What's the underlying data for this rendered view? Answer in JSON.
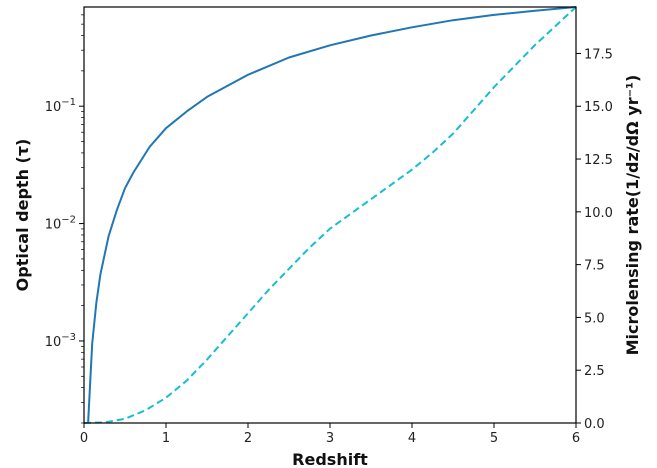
{
  "chart_data": {
    "type": "line",
    "xlabel": "Redshift",
    "ylabel_left": "Optical depth (τ)",
    "ylabel_right": "Microlensing rate(1/dz/dΩ yr⁻¹)",
    "x_ticks": [
      "0",
      "1",
      "2",
      "3",
      "4",
      "5",
      "6"
    ],
    "xlim": [
      0,
      6
    ],
    "left_axis": {
      "scale": "log",
      "ylim": [
        0.0002,
        0.7
      ],
      "ticks": [
        {
          "value": 0.001,
          "base": "10",
          "exp": "−3"
        },
        {
          "value": 0.01,
          "base": "10",
          "exp": "−2"
        },
        {
          "value": 0.1,
          "base": "10",
          "exp": "−1"
        }
      ]
    },
    "right_axis": {
      "scale": "linear",
      "ylim": [
        0,
        19.7
      ],
      "ticks": [
        "0.0",
        "2.5",
        "5.0",
        "7.5",
        "10.0",
        "12.5",
        "15.0",
        "17.5"
      ]
    },
    "series": [
      {
        "axis": "left",
        "style": "solid",
        "color": "#1f77b4",
        "x": [
          0.05,
          0.1,
          0.15,
          0.2,
          0.3,
          0.4,
          0.5,
          0.6,
          0.8,
          1.0,
          1.25,
          1.5,
          2.0,
          2.5,
          3.0,
          3.5,
          4.0,
          4.5,
          5.0,
          5.5,
          6.0
        ],
        "y": [
          0.0002,
          0.00095,
          0.0021,
          0.0037,
          0.0078,
          0.013,
          0.02,
          0.027,
          0.045,
          0.065,
          0.09,
          0.12,
          0.185,
          0.26,
          0.33,
          0.4,
          0.47,
          0.54,
          0.6,
          0.65,
          0.7
        ]
      },
      {
        "axis": "right",
        "style": "dashed",
        "color": "#17becf",
        "x": [
          0.0,
          0.25,
          0.5,
          0.75,
          1.0,
          1.25,
          1.5,
          1.75,
          2.0,
          2.25,
          2.5,
          2.75,
          3.0,
          3.25,
          3.5,
          3.75,
          4.0,
          4.25,
          4.5,
          4.75,
          5.0,
          5.25,
          5.5,
          5.75,
          6.0
        ],
        "y": [
          0.0,
          0.03,
          0.2,
          0.6,
          1.2,
          2.0,
          3.0,
          4.1,
          5.2,
          6.3,
          7.3,
          8.3,
          9.2,
          9.9,
          10.6,
          11.3,
          12.0,
          12.8,
          13.7,
          14.8,
          15.9,
          16.9,
          17.9,
          18.8,
          19.7
        ]
      }
    ]
  }
}
